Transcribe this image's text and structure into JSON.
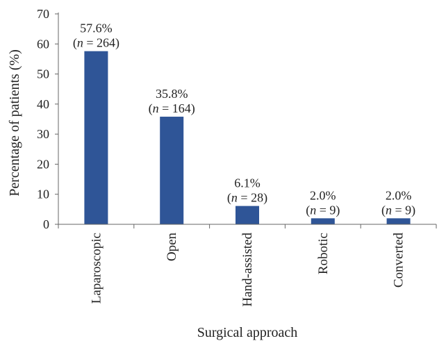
{
  "chart_data": {
    "type": "bar",
    "categories": [
      "Laparoscopic",
      "Open",
      "Hand-assisted",
      "Robotic",
      "Converted"
    ],
    "values": [
      57.6,
      35.8,
      6.1,
      2.0,
      2.0
    ],
    "data_labels": [
      {
        "pct": "57.6%",
        "n_prefix": "(",
        "n_var": "n",
        "n_suffix": " = 264)"
      },
      {
        "pct": "35.8%",
        "n_prefix": "(",
        "n_var": "n",
        "n_suffix": " = 164)"
      },
      {
        "pct": "6.1%",
        "n_prefix": "(",
        "n_var": "n",
        "n_suffix": " = 28)"
      },
      {
        "pct": "2.0%",
        "n_prefix": "(",
        "n_var": "n",
        "n_suffix": " = 9)"
      },
      {
        "pct": "2.0%",
        "n_prefix": "(",
        "n_var": "n",
        "n_suffix": " = 9)"
      }
    ],
    "title": "",
    "xlabel": "Surgical approach",
    "ylabel": "Percentage of patients (%)",
    "ylim": [
      0,
      70
    ],
    "yticks": [
      0,
      10,
      20,
      30,
      40,
      50,
      60,
      70
    ],
    "bar_color": "#2f5597",
    "grid": false
  }
}
